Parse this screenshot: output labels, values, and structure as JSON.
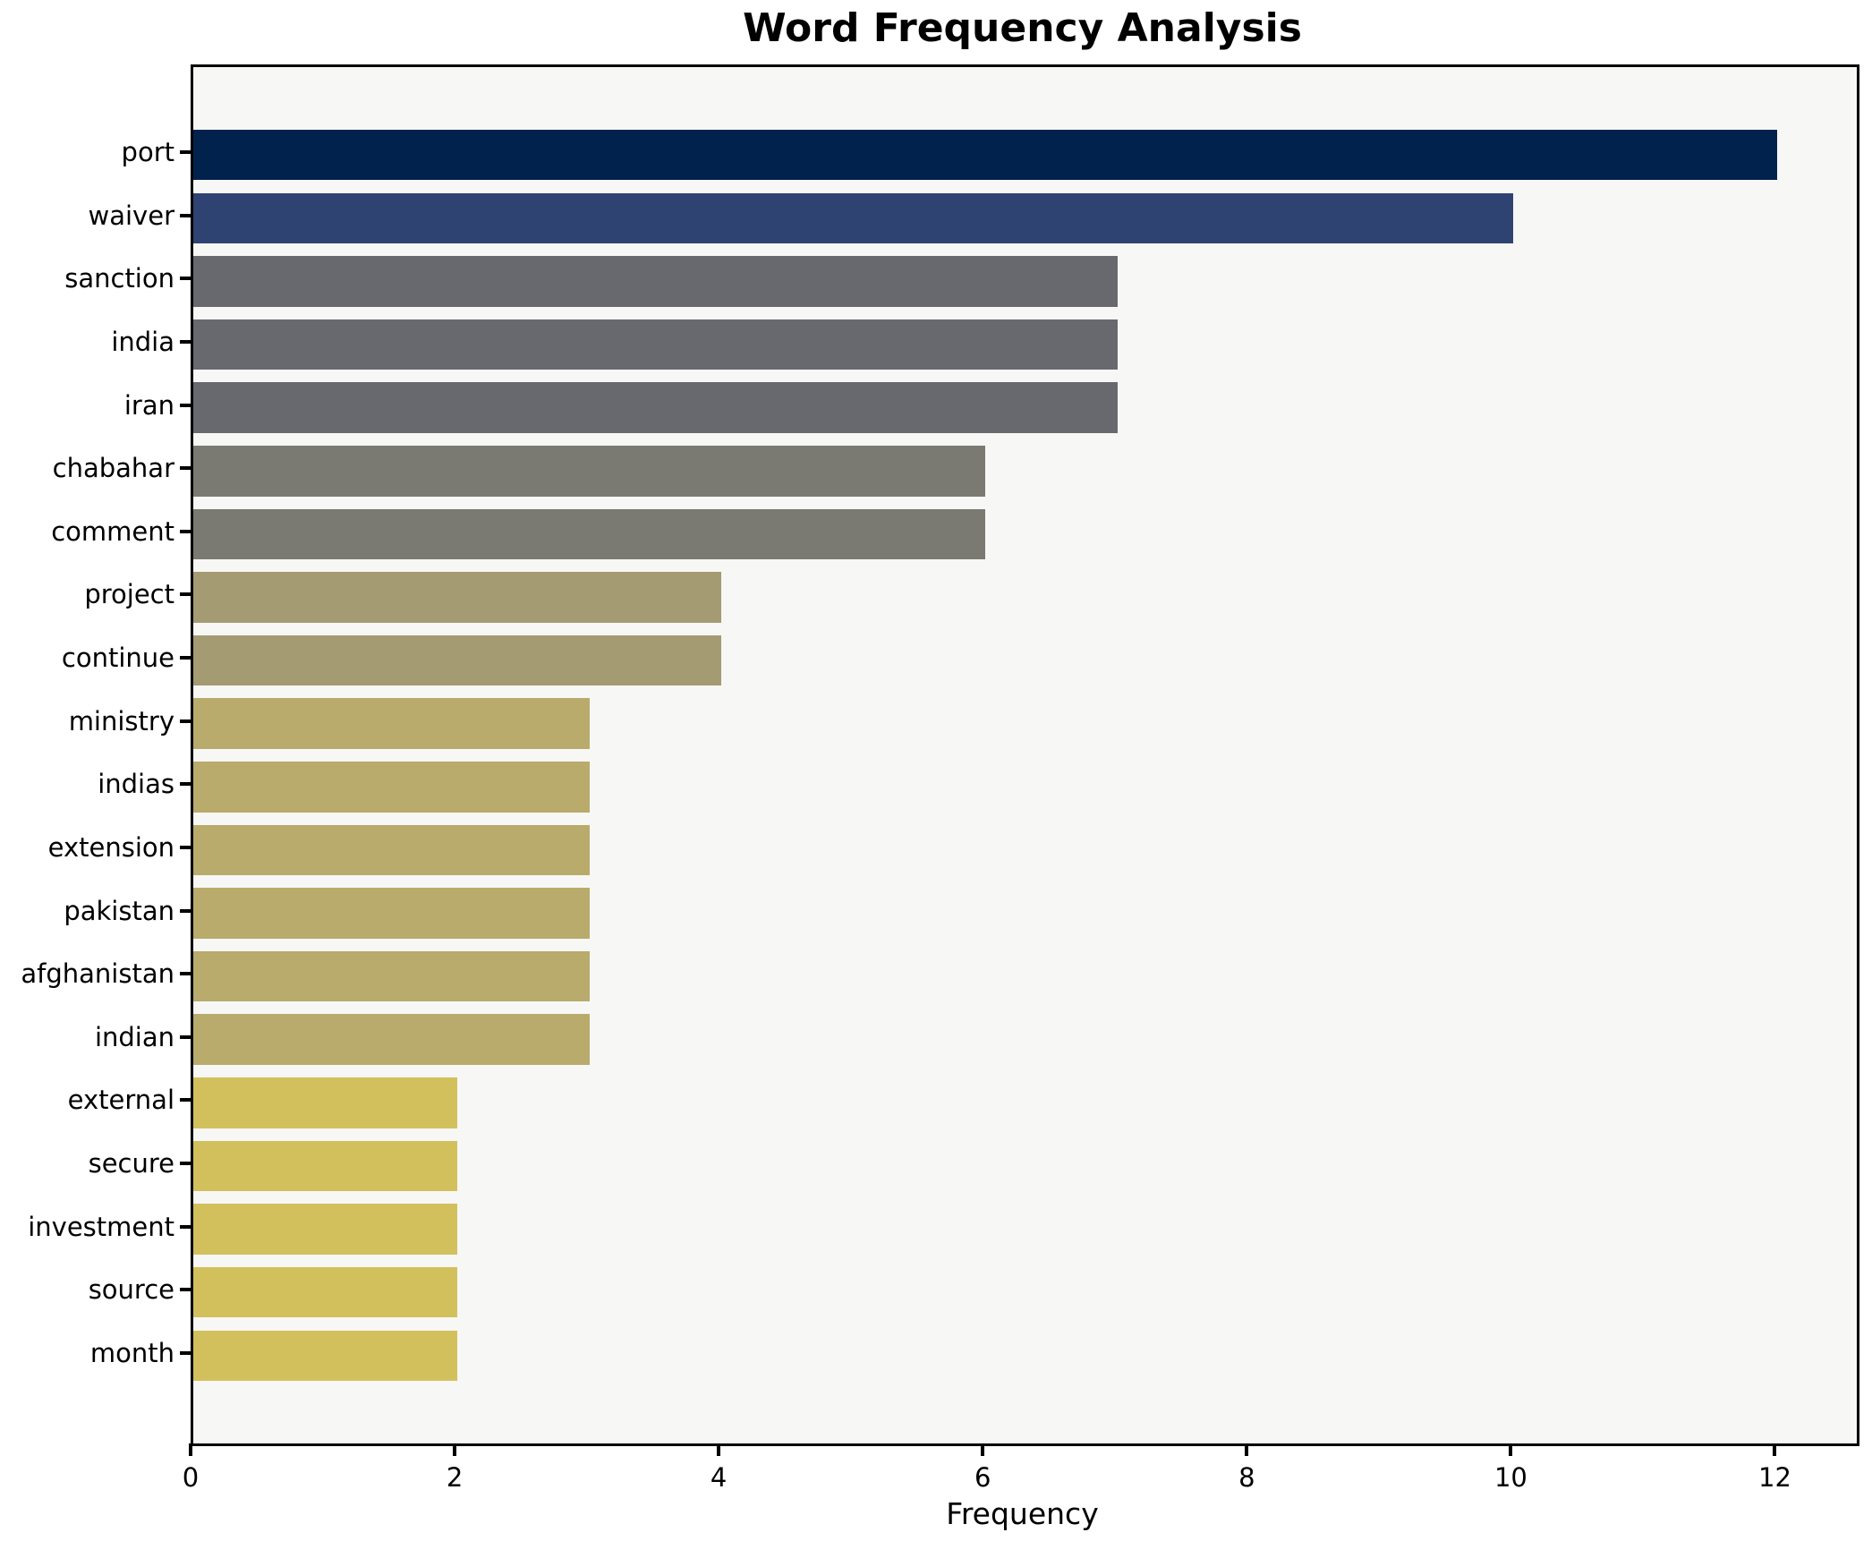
{
  "chart_data": {
    "type": "bar",
    "orientation": "horizontal",
    "title": "Word Frequency Analysis",
    "xlabel": "Frequency",
    "ylabel": "",
    "categories": [
      "port",
      "waiver",
      "sanction",
      "india",
      "iran",
      "chabahar",
      "comment",
      "project",
      "continue",
      "ministry",
      "indias",
      "extension",
      "pakistan",
      "afghanistan",
      "indian",
      "external",
      "secure",
      "investment",
      "source",
      "month"
    ],
    "values": [
      12,
      10,
      7,
      7,
      7,
      6,
      6,
      4,
      4,
      3,
      3,
      3,
      3,
      3,
      3,
      2,
      2,
      2,
      2,
      2
    ],
    "bar_colors": [
      "#02224e",
      "#2e4372",
      "#68696e",
      "#68696e",
      "#68696e",
      "#7b7a72",
      "#7b7a72",
      "#a49b72",
      "#a49b72",
      "#b8ab6b",
      "#b8ab6b",
      "#b8ab6b",
      "#b8ab6b",
      "#b8ab6b",
      "#b8ab6b",
      "#d2c05d",
      "#d2c05d",
      "#d2c05d",
      "#d2c05d",
      "#d2c05d"
    ],
    "xlim": [
      0,
      12.6
    ],
    "x_ticks": [
      0,
      2,
      4,
      6,
      8,
      10,
      12
    ],
    "grid": false,
    "legend": null,
    "plot_bg_color": "#f7f7f5",
    "figure_bg_color": "#ffffff",
    "spine_color": "#000000",
    "text_color": "#000000"
  }
}
